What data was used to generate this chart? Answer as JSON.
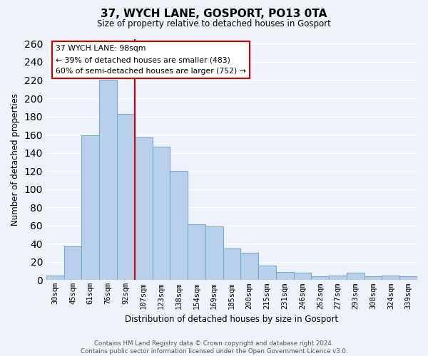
{
  "title": "37, WYCH LANE, GOSPORT, PO13 0TA",
  "subtitle": "Size of property relative to detached houses in Gosport",
  "xlabel": "Distribution of detached houses by size in Gosport",
  "ylabel": "Number of detached properties",
  "bar_labels": [
    "30sqm",
    "45sqm",
    "61sqm",
    "76sqm",
    "92sqm",
    "107sqm",
    "123sqm",
    "138sqm",
    "154sqm",
    "169sqm",
    "185sqm",
    "200sqm",
    "215sqm",
    "231sqm",
    "246sqm",
    "262sqm",
    "277sqm",
    "293sqm",
    "308sqm",
    "324sqm",
    "339sqm"
  ],
  "bar_values": [
    5,
    37,
    159,
    220,
    183,
    157,
    147,
    120,
    61,
    59,
    35,
    30,
    16,
    9,
    8,
    4,
    5,
    8,
    4,
    5,
    4
  ],
  "bar_color": "#b8d0ea",
  "bar_edge_color": "#7aaacf",
  "vline_color": "#cc0000",
  "vline_pos": 4.5,
  "ylim": [
    0,
    265
  ],
  "yticks": [
    0,
    20,
    40,
    60,
    80,
    100,
    120,
    140,
    160,
    180,
    200,
    220,
    240,
    260
  ],
  "annotation_title": "37 WYCH LANE: 98sqm",
  "annotation_line1": "← 39% of detached houses are smaller (483)",
  "annotation_line2": "60% of semi-detached houses are larger (752) →",
  "annotation_box_color": "#ffffff",
  "annotation_box_edge": "#cc0000",
  "footer_line1": "Contains HM Land Registry data © Crown copyright and database right 2024.",
  "footer_line2": "Contains public sector information licensed under the Open Government Licence v3.0.",
  "background_color": "#eef2f9",
  "grid_color": "#ffffff"
}
